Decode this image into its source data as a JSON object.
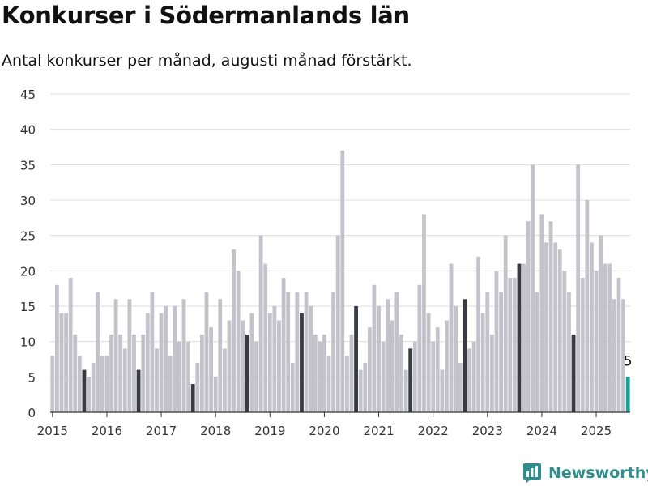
{
  "title": "Konkurser i Södermanlands län",
  "subtitle": "Antal konkurser per månad, augusti månad förstärkt.",
  "brand": {
    "name": "Newsworthy"
  },
  "colors": {
    "bar": "#c4c3cb",
    "highlight": "#3a3a42",
    "latest": "#17a398",
    "grid": "#dddddd",
    "axis": "#333333"
  },
  "chart_data": {
    "type": "bar",
    "title": "Konkurser i Södermanlands län",
    "subtitle": "Antal konkurser per månad, augusti månad förstärkt.",
    "xlabel": "",
    "ylabel": "",
    "ylim": [
      0,
      45
    ],
    "yticks": [
      0,
      5,
      10,
      15,
      20,
      25,
      30,
      35,
      40,
      45
    ],
    "grid": true,
    "start_month": "2015-01",
    "end_month": "2025-08",
    "x_tick_labels": [
      "2015",
      "2016",
      "2017",
      "2018",
      "2019",
      "2020",
      "2021",
      "2022",
      "2023",
      "2024",
      "2025"
    ],
    "emphasized_month": "augusti",
    "last_value_label": "5",
    "values": [
      8,
      18,
      14,
      14,
      19,
      11,
      8,
      6,
      5,
      7,
      17,
      8,
      8,
      11,
      16,
      11,
      9,
      16,
      11,
      6,
      11,
      14,
      17,
      9,
      14,
      15,
      8,
      15,
      10,
      16,
      10,
      4,
      7,
      11,
      17,
      12,
      5,
      16,
      9,
      13,
      23,
      20,
      13,
      11,
      14,
      10,
      25,
      21,
      14,
      15,
      13,
      19,
      17,
      7,
      17,
      14,
      17,
      15,
      11,
      10,
      11,
      8,
      17,
      25,
      37,
      8,
      11,
      15,
      6,
      7,
      12,
      18,
      15,
      10,
      16,
      13,
      17,
      11,
      6,
      9,
      10,
      18,
      28,
      14,
      10,
      12,
      6,
      13,
      21,
      15,
      7,
      16,
      9,
      10,
      22,
      14,
      17,
      11,
      20,
      17,
      25,
      19,
      19,
      21,
      21,
      27,
      35,
      17,
      28,
      24,
      27,
      24,
      23,
      20,
      17,
      11,
      35,
      19,
      30,
      24,
      20,
      25,
      21,
      21,
      16,
      19,
      16,
      5
    ]
  }
}
